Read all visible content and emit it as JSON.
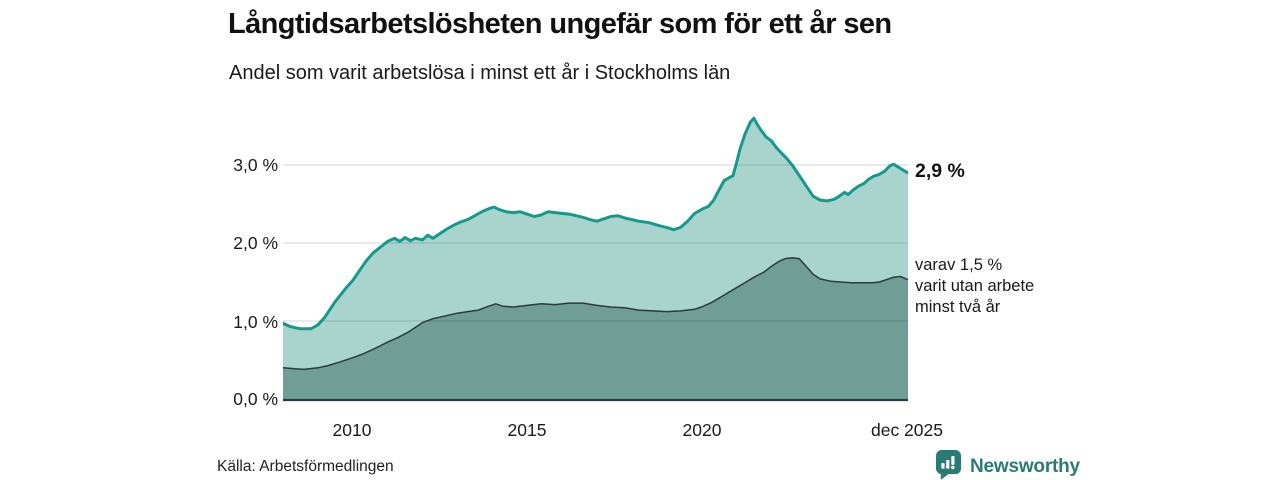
{
  "header": {
    "title": "Långtidsarbetslösheten ungefär som för ett år sen",
    "subtitle": "Andel som varit arbetslösa i minst ett år i Stockholms län"
  },
  "footer": {
    "source": "Källa: Arbetsförmedlingen",
    "brand": "Newsworthy"
  },
  "colors": {
    "total_line": "#149a8c",
    "total_fill": "#a9d4cd",
    "two_year_line": "#2b3a3e",
    "two_year_fill": "#6f9e97",
    "gridline": "rgba(0,0,0,0.13)",
    "baseline": "#2b3a3e",
    "brand_teal": "#2b7b75"
  },
  "chart_data": {
    "type": "area",
    "title": "Långtidsarbetslösheten ungefär som för ett år sen",
    "subtitle": "Andel som varit arbetslösa i minst ett år i Stockholms län",
    "grid": true,
    "legend_position": "right-annotations",
    "x_axis": {
      "range": [
        2008.0,
        2025.92
      ],
      "ticks": [
        "2010",
        "2015",
        "2020",
        "dec 2025"
      ],
      "tick_positions": [
        2010,
        2015,
        2020,
        2025.92
      ]
    },
    "y_axis": {
      "unit": "%",
      "range": [
        0,
        3.65
      ],
      "ticks": [
        "0,0 %",
        "1,0 %",
        "2,0 %",
        "3,0 %"
      ],
      "tick_values": [
        0,
        1,
        2,
        3
      ]
    },
    "annotations": {
      "total_end_label": "2,9 %",
      "two_year_label_lines": [
        "varav 1,5 %",
        "varit utan arbete",
        "minst två år"
      ]
    },
    "series": [
      {
        "name": "unemployed-one-year-plus",
        "end_value": 2.9,
        "fill": "#a9d4cd",
        "stroke": "#149a8c",
        "stroke_width": 3,
        "points": [
          [
            2008.0,
            0.97
          ],
          [
            2008.2,
            0.93
          ],
          [
            2008.5,
            0.9
          ],
          [
            2008.8,
            0.9
          ],
          [
            2009.0,
            0.95
          ],
          [
            2009.2,
            1.05
          ],
          [
            2009.5,
            1.25
          ],
          [
            2009.8,
            1.42
          ],
          [
            2010.0,
            1.52
          ],
          [
            2010.2,
            1.65
          ],
          [
            2010.4,
            1.78
          ],
          [
            2010.6,
            1.88
          ],
          [
            2010.8,
            1.95
          ],
          [
            2011.0,
            2.02
          ],
          [
            2011.2,
            2.06
          ],
          [
            2011.35,
            2.02
          ],
          [
            2011.5,
            2.07
          ],
          [
            2011.65,
            2.03
          ],
          [
            2011.8,
            2.06
          ],
          [
            2012.0,
            2.04
          ],
          [
            2012.15,
            2.1
          ],
          [
            2012.3,
            2.06
          ],
          [
            2012.5,
            2.12
          ],
          [
            2012.7,
            2.18
          ],
          [
            2012.9,
            2.23
          ],
          [
            2013.1,
            2.27
          ],
          [
            2013.3,
            2.3
          ],
          [
            2013.5,
            2.35
          ],
          [
            2013.7,
            2.4
          ],
          [
            2013.9,
            2.44
          ],
          [
            2014.05,
            2.46
          ],
          [
            2014.2,
            2.43
          ],
          [
            2014.4,
            2.4
          ],
          [
            2014.6,
            2.39
          ],
          [
            2014.8,
            2.4
          ],
          [
            2015.0,
            2.37
          ],
          [
            2015.2,
            2.34
          ],
          [
            2015.4,
            2.36
          ],
          [
            2015.6,
            2.4
          ],
          [
            2015.8,
            2.39
          ],
          [
            2016.0,
            2.38
          ],
          [
            2016.2,
            2.37
          ],
          [
            2016.4,
            2.35
          ],
          [
            2016.6,
            2.33
          ],
          [
            2016.8,
            2.3
          ],
          [
            2017.0,
            2.28
          ],
          [
            2017.2,
            2.31
          ],
          [
            2017.4,
            2.34
          ],
          [
            2017.6,
            2.35
          ],
          [
            2017.8,
            2.32
          ],
          [
            2018.0,
            2.3
          ],
          [
            2018.2,
            2.28
          ],
          [
            2018.5,
            2.26
          ],
          [
            2018.8,
            2.22
          ],
          [
            2019.0,
            2.2
          ],
          [
            2019.2,
            2.17
          ],
          [
            2019.4,
            2.2
          ],
          [
            2019.6,
            2.28
          ],
          [
            2019.8,
            2.38
          ],
          [
            2020.0,
            2.43
          ],
          [
            2020.2,
            2.47
          ],
          [
            2020.35,
            2.55
          ],
          [
            2020.5,
            2.68
          ],
          [
            2020.65,
            2.8
          ],
          [
            2020.8,
            2.84
          ],
          [
            2020.9,
            2.86
          ],
          [
            2021.0,
            3.02
          ],
          [
            2021.1,
            3.2
          ],
          [
            2021.25,
            3.4
          ],
          [
            2021.4,
            3.55
          ],
          [
            2021.5,
            3.6
          ],
          [
            2021.6,
            3.52
          ],
          [
            2021.7,
            3.45
          ],
          [
            2021.85,
            3.36
          ],
          [
            2022.0,
            3.31
          ],
          [
            2022.15,
            3.22
          ],
          [
            2022.3,
            3.15
          ],
          [
            2022.45,
            3.08
          ],
          [
            2022.6,
            3.0
          ],
          [
            2022.75,
            2.9
          ],
          [
            2022.9,
            2.8
          ],
          [
            2023.05,
            2.7
          ],
          [
            2023.2,
            2.6
          ],
          [
            2023.4,
            2.55
          ],
          [
            2023.6,
            2.54
          ],
          [
            2023.8,
            2.56
          ],
          [
            2023.95,
            2.6
          ],
          [
            2024.1,
            2.65
          ],
          [
            2024.2,
            2.62
          ],
          [
            2024.35,
            2.68
          ],
          [
            2024.5,
            2.73
          ],
          [
            2024.65,
            2.76
          ],
          [
            2024.8,
            2.82
          ],
          [
            2024.95,
            2.86
          ],
          [
            2025.1,
            2.88
          ],
          [
            2025.25,
            2.92
          ],
          [
            2025.4,
            2.99
          ],
          [
            2025.5,
            3.01
          ],
          [
            2025.65,
            2.97
          ],
          [
            2025.8,
            2.93
          ],
          [
            2025.92,
            2.9
          ]
        ]
      },
      {
        "name": "unemployed-two-years-plus",
        "end_value": 1.5,
        "fill": "#6f9e97",
        "stroke": "#2b3a3e",
        "stroke_width": 1.5,
        "points": [
          [
            2008.0,
            0.4
          ],
          [
            2008.3,
            0.39
          ],
          [
            2008.6,
            0.38
          ],
          [
            2009.0,
            0.4
          ],
          [
            2009.3,
            0.43
          ],
          [
            2009.6,
            0.47
          ],
          [
            2010.0,
            0.53
          ],
          [
            2010.3,
            0.58
          ],
          [
            2010.6,
            0.64
          ],
          [
            2011.0,
            0.73
          ],
          [
            2011.3,
            0.79
          ],
          [
            2011.6,
            0.86
          ],
          [
            2012.0,
            0.98
          ],
          [
            2012.3,
            1.03
          ],
          [
            2012.6,
            1.06
          ],
          [
            2013.0,
            1.1
          ],
          [
            2013.3,
            1.12
          ],
          [
            2013.6,
            1.14
          ],
          [
            2013.9,
            1.19
          ],
          [
            2014.1,
            1.22
          ],
          [
            2014.3,
            1.19
          ],
          [
            2014.6,
            1.18
          ],
          [
            2015.0,
            1.2
          ],
          [
            2015.4,
            1.22
          ],
          [
            2015.8,
            1.21
          ],
          [
            2016.2,
            1.23
          ],
          [
            2016.6,
            1.23
          ],
          [
            2017.0,
            1.2
          ],
          [
            2017.4,
            1.18
          ],
          [
            2017.8,
            1.17
          ],
          [
            2018.2,
            1.14
          ],
          [
            2018.6,
            1.13
          ],
          [
            2019.0,
            1.12
          ],
          [
            2019.4,
            1.13
          ],
          [
            2019.8,
            1.15
          ],
          [
            2020.0,
            1.18
          ],
          [
            2020.3,
            1.24
          ],
          [
            2020.6,
            1.32
          ],
          [
            2020.9,
            1.4
          ],
          [
            2021.2,
            1.48
          ],
          [
            2021.5,
            1.56
          ],
          [
            2021.8,
            1.63
          ],
          [
            2022.0,
            1.7
          ],
          [
            2022.2,
            1.76
          ],
          [
            2022.4,
            1.8
          ],
          [
            2022.6,
            1.81
          ],
          [
            2022.8,
            1.8
          ],
          [
            2023.0,
            1.7
          ],
          [
            2023.2,
            1.6
          ],
          [
            2023.4,
            1.54
          ],
          [
            2023.7,
            1.51
          ],
          [
            2024.0,
            1.5
          ],
          [
            2024.3,
            1.49
          ],
          [
            2024.6,
            1.49
          ],
          [
            2024.9,
            1.49
          ],
          [
            2025.1,
            1.5
          ],
          [
            2025.3,
            1.53
          ],
          [
            2025.5,
            1.56
          ],
          [
            2025.7,
            1.57
          ],
          [
            2025.92,
            1.53
          ]
        ]
      }
    ]
  }
}
